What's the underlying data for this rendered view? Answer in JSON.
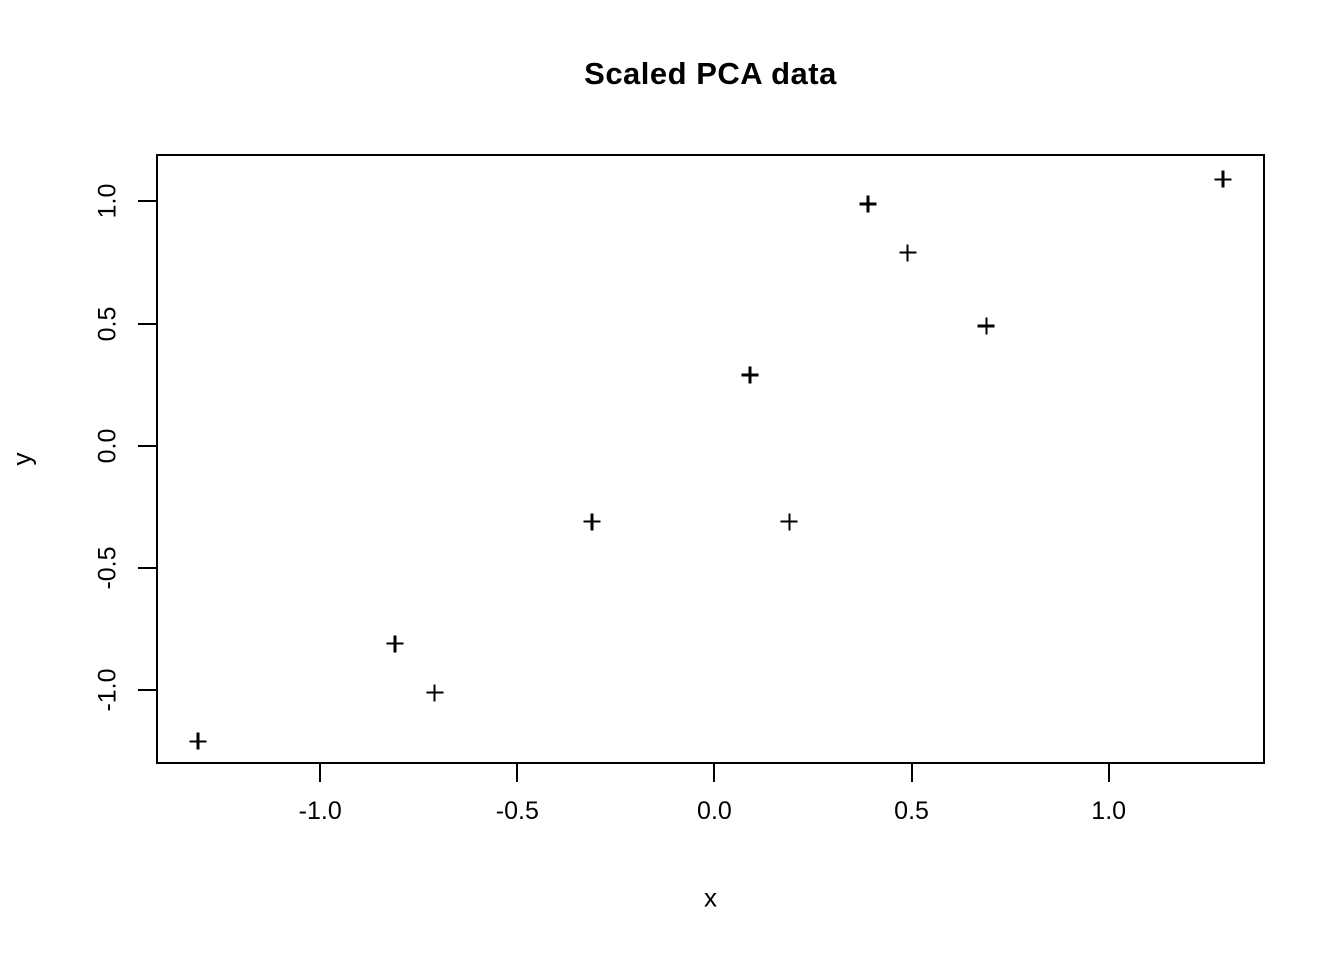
{
  "figure": {
    "title": "Scaled PCA data",
    "x_axis_label": "x",
    "y_axis_label": "y"
  },
  "colors": {
    "foreground": "#000000",
    "background": "#ffffff"
  },
  "chart_data": {
    "type": "scatter",
    "title": "Scaled PCA data",
    "xlabel": "x",
    "ylabel": "y",
    "marker": "plus",
    "marker_color": "#000000",
    "grid": false,
    "legend": null,
    "xlim": [
      -1.414,
      1.394
    ],
    "ylim": [
      -1.298,
      1.19
    ],
    "x_ticks": [
      -1.0,
      -0.5,
      0.0,
      0.5,
      1.0
    ],
    "x_tick_labels": [
      "-1.0",
      "-0.5",
      "0.0",
      "0.5",
      "1.0"
    ],
    "y_ticks": [
      -1.0,
      -0.5,
      0.0,
      0.5,
      1.0
    ],
    "y_tick_labels": [
      "-1.0",
      "-0.5",
      "0.0",
      "0.5",
      "1.0"
    ],
    "points": [
      {
        "x": 0.69,
        "y": 0.49
      },
      {
        "x": -1.31,
        "y": -1.21
      },
      {
        "x": 0.39,
        "y": 0.99
      },
      {
        "x": 0.09,
        "y": 0.29
      },
      {
        "x": 1.29,
        "y": 1.09
      },
      {
        "x": 0.49,
        "y": 0.79
      },
      {
        "x": 0.19,
        "y": -0.31
      },
      {
        "x": -0.81,
        "y": -0.81
      },
      {
        "x": -0.31,
        "y": -0.31
      },
      {
        "x": -0.71,
        "y": -1.01
      }
    ]
  }
}
